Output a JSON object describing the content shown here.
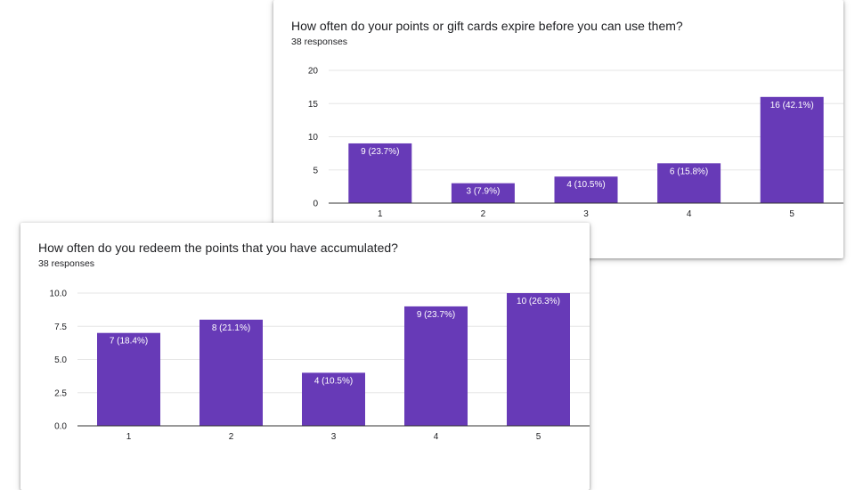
{
  "colors": {
    "bar": "#673ab7",
    "grid": "#e6e6e6",
    "axis": "#333333"
  },
  "chart_data": [
    {
      "type": "bar",
      "title": "How often do your points or gift cards expire before you can use them?",
      "subtitle": "38 responses",
      "categories": [
        "1",
        "2",
        "3",
        "4",
        "5"
      ],
      "values": [
        9,
        3,
        4,
        6,
        16
      ],
      "data_labels": [
        "9 (23.7%)",
        "3 (7.9%)",
        "4 (10.5%)",
        "6 (15.8%)",
        "16 (42.1%)"
      ],
      "yticks": [
        "0",
        "5",
        "10",
        "15",
        "20"
      ],
      "ylim": [
        0,
        20
      ],
      "grid": true
    },
    {
      "type": "bar",
      "title": "How often do you redeem the points that you have accumulated?",
      "subtitle": "38 responses",
      "categories": [
        "1",
        "2",
        "3",
        "4",
        "5"
      ],
      "values": [
        7,
        8,
        4,
        9,
        10
      ],
      "data_labels": [
        "7 (18.4%)",
        "8 (21.1%)",
        "4 (10.5%)",
        "9 (23.7%)",
        "10 (26.3%)"
      ],
      "yticks": [
        "0.0",
        "2.5",
        "5.0",
        "7.5",
        "10.0"
      ],
      "ylim": [
        0,
        10
      ],
      "grid": true
    }
  ]
}
